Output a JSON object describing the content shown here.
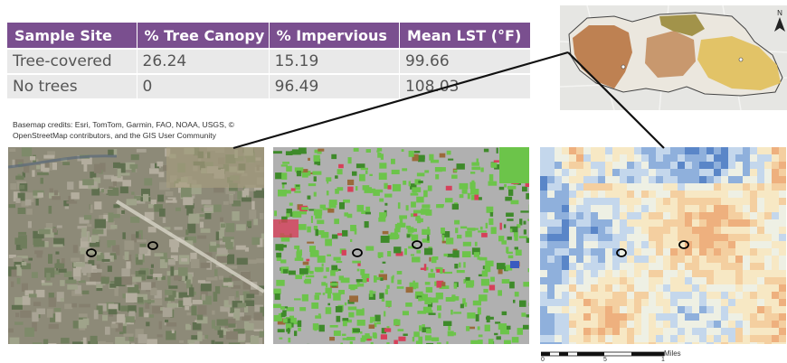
{
  "table": {
    "headers": [
      "Sample Site",
      "% Tree Canopy",
      "% Impervious",
      "Mean LST (°F)"
    ],
    "rows": [
      [
        "Tree-covered",
        "26.24",
        "15.19",
        "99.66"
      ],
      [
        "No trees",
        "0",
        "96.49",
        "108.03"
      ]
    ]
  },
  "credits": "Basemap credits: Esri, TomTom, Garmin, FAO, NOAA, USGS, © OpenStreetMap contributors, and the GIS User Community",
  "north_arrow": {
    "label": "N",
    "icon": "north-arrow-icon"
  },
  "scale_bar": {
    "unit": "Miles",
    "ticks": [
      "0",
      "5",
      "1"
    ]
  },
  "colors": {
    "table_header": "#7a4f8f",
    "table_row": "#e9e9e9",
    "impervious": "#b0b0b0",
    "vegetation": "#6cc44a",
    "lst_cool": "#5a86c8",
    "lst_warm": "#f0b07a"
  }
}
